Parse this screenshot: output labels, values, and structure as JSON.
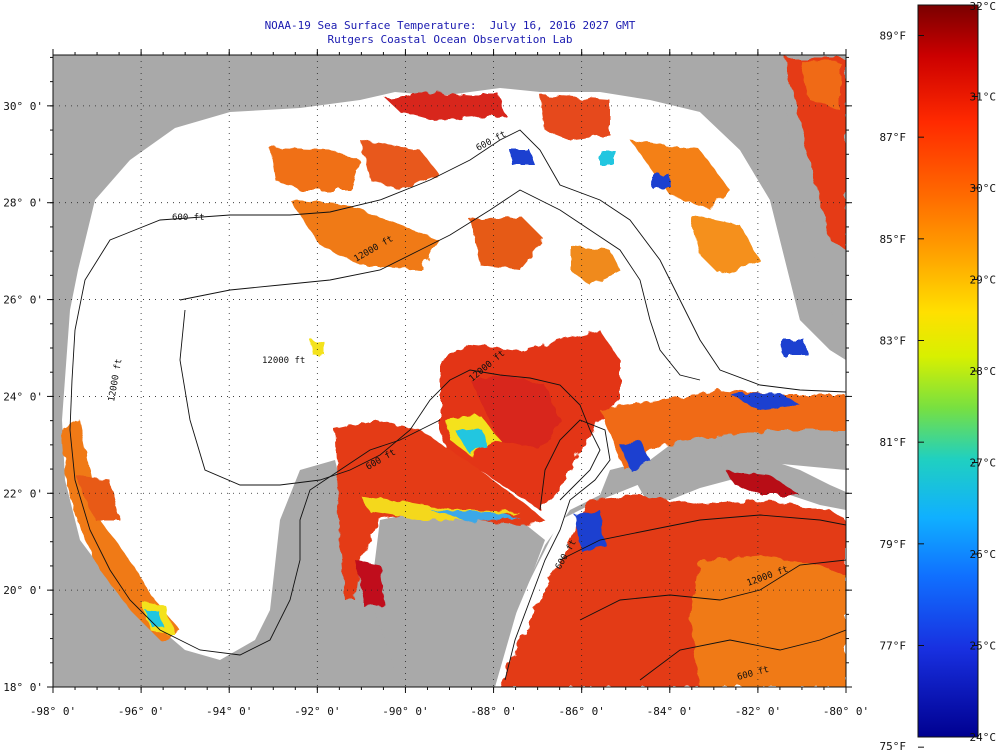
{
  "title": "NOAA-19 Sea Surface Temperature:  July 16, 2016 2027 GMT",
  "subtitle": "Rutgers Coastal Ocean Observation Lab",
  "map": {
    "lon_range": [
      -98,
      -80
    ],
    "lat_range": [
      18,
      31
    ],
    "lon_ticks": [
      "-98° 0'",
      "-96° 0'",
      "-94° 0'",
      "-92° 0'",
      "-90° 0'",
      "-88° 0'",
      "-86° 0'",
      "-84° 0'",
      "-82° 0'",
      "-80° 0'"
    ],
    "lat_ticks": [
      "30° 0'",
      "28° 0'",
      "26° 0'",
      "24° 0'",
      "22° 0'",
      "20° 0'",
      "18° 0'"
    ],
    "contour_labels": [
      "600 ft",
      "600 ft",
      "12000 ft",
      "12000 ft",
      "12000 ft",
      "600 ft",
      "600 ft",
      "12000 ft",
      "12000 ft",
      "600 ft"
    ],
    "colors": {
      "land": "#a9a9a9",
      "cloud": "#ffffff",
      "warm": "#e03010",
      "hot": "#b80a0a",
      "orange": "#f77a12",
      "yellow": "#f4e21a",
      "cyan": "#21c6e0",
      "blue": "#1a40d0"
    }
  },
  "colorbar": {
    "celsius": [
      "32°C",
      "31°C",
      "30°C",
      "29°C",
      "28°C",
      "27°C",
      "26°C",
      "25°C",
      "24°C"
    ],
    "fahrenheit": [
      "89°F",
      "87°F",
      "85°F",
      "83°F",
      "81°F",
      "79°F",
      "77°F",
      "75°F"
    ],
    "colors": [
      "#e60000",
      "#ff3b00",
      "#ff7a00",
      "#ffb000",
      "#ffee00",
      "#c8f000",
      "#55e860",
      "#10d8d0",
      "#10a8ff",
      "#1060ff",
      "#1028e0",
      "#0010b0",
      "#000080"
    ]
  }
}
